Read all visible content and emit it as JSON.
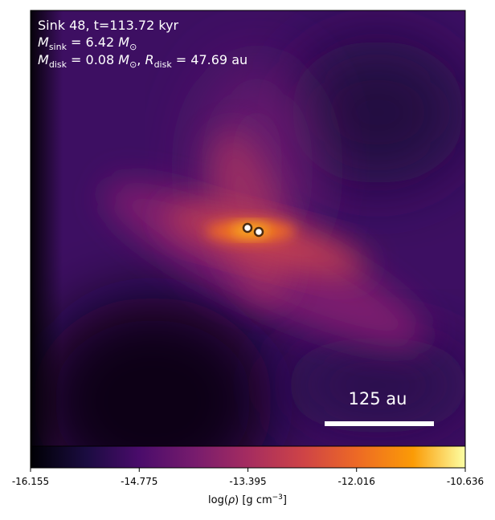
{
  "chart_data": {
    "type": "image",
    "annotation_lines": [
      [
        "Sink 48, t=113.72 kyr"
      ],
      [
        "M",
        "sink",
        " = 6.42 ",
        "M",
        "⊙"
      ],
      [
        "M",
        "disk",
        " = 0.08 ",
        "M",
        "⊙",
        ", ",
        "R",
        "disk",
        " = 47.69 au"
      ]
    ],
    "scale_bar_label": "125 au",
    "colorbar": {
      "clim": [
        -16.155,
        -10.636
      ],
      "ticks": [
        -16.155,
        -14.775,
        -13.395,
        -12.016,
        -10.636
      ],
      "label": [
        "log(",
        "ρ",
        ") [g cm",
        "−3",
        "]"
      ]
    }
  }
}
